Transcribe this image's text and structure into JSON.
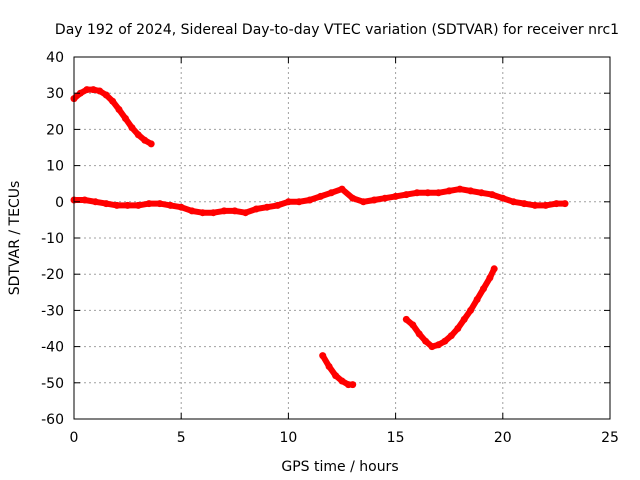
{
  "chart_data": {
    "type": "scatter",
    "title": "Day 192 of 2024, Sidereal Day-to-day VTEC variation (SDTVAR) for receiver nrc1",
    "xlabel": "GPS time / hours",
    "ylabel": "SDTVAR / TECUs",
    "xlim": [
      0,
      25
    ],
    "ylim": [
      -60,
      40
    ],
    "x_ticks": [
      0,
      5,
      10,
      15,
      20,
      25
    ],
    "y_ticks": [
      -60,
      -50,
      -40,
      -30,
      -20,
      -10,
      0,
      10,
      20,
      30,
      40
    ],
    "x_tick_labels": [
      "0",
      "5",
      "10",
      "15",
      "20",
      "25"
    ],
    "y_tick_labels": [
      "-60",
      "-50",
      "-40",
      "-30",
      "-20",
      "-10",
      "0",
      "10",
      "20",
      "30",
      "40"
    ],
    "grid": true,
    "color": "#ff0000",
    "series": [
      {
        "name": "satellite-arc-high",
        "x": [
          0.0,
          0.3,
          0.6,
          0.9,
          1.2,
          1.5,
          1.8,
          2.1,
          2.4,
          2.7,
          3.0,
          3.3,
          3.6
        ],
        "y": [
          28.5,
          30.0,
          31.0,
          31.0,
          30.6,
          29.5,
          27.8,
          25.5,
          23.0,
          20.5,
          18.5,
          17.0,
          16.0
        ]
      },
      {
        "name": "satellite-arc-main",
        "x": [
          0.0,
          0.5,
          1.0,
          1.5,
          2.0,
          2.5,
          3.0,
          3.5,
          4.0,
          4.5,
          5.0,
          5.5,
          6.0,
          6.5,
          7.0,
          7.5,
          8.0,
          8.5,
          9.0,
          9.5,
          10.0,
          10.5,
          11.0,
          11.5,
          12.0,
          12.5,
          13.0,
          13.5,
          14.0,
          14.5,
          15.0,
          15.5,
          16.0,
          16.5,
          17.0,
          17.5,
          18.0,
          18.5,
          19.0,
          19.5,
          20.0,
          20.5,
          21.0,
          21.5,
          22.0,
          22.5,
          22.9
        ],
        "y": [
          0.5,
          0.5,
          0.0,
          -0.5,
          -1.0,
          -1.0,
          -1.0,
          -0.5,
          -0.5,
          -1.0,
          -1.5,
          -2.5,
          -3.0,
          -3.0,
          -2.5,
          -2.5,
          -3.0,
          -2.0,
          -1.5,
          -1.0,
          0.0,
          0.0,
          0.5,
          1.5,
          2.5,
          3.5,
          1.0,
          0.0,
          0.5,
          1.0,
          1.5,
          2.0,
          2.5,
          2.5,
          2.5,
          3.0,
          3.5,
          3.0,
          2.5,
          2.0,
          1.0,
          0.0,
          -0.5,
          -1.0,
          -1.0,
          -0.5,
          -0.5
        ]
      },
      {
        "name": "satellite-arc-low",
        "x": [
          11.6,
          11.9,
          12.2,
          12.5,
          12.8,
          13.0
        ],
        "y": [
          -42.5,
          -45.5,
          -48.0,
          -49.5,
          -50.5,
          -50.5
        ]
      },
      {
        "name": "satellite-arc-v",
        "x": [
          15.5,
          15.8,
          16.1,
          16.4,
          16.7,
          17.0,
          17.3,
          17.6,
          17.9,
          18.2,
          18.5,
          18.8,
          19.1,
          19.4,
          19.6
        ],
        "y": [
          -32.5,
          -34.0,
          -36.5,
          -38.5,
          -40.0,
          -39.5,
          -38.5,
          -37.0,
          -35.0,
          -32.5,
          -30.0,
          -27.0,
          -24.0,
          -21.0,
          -18.5
        ]
      }
    ]
  }
}
